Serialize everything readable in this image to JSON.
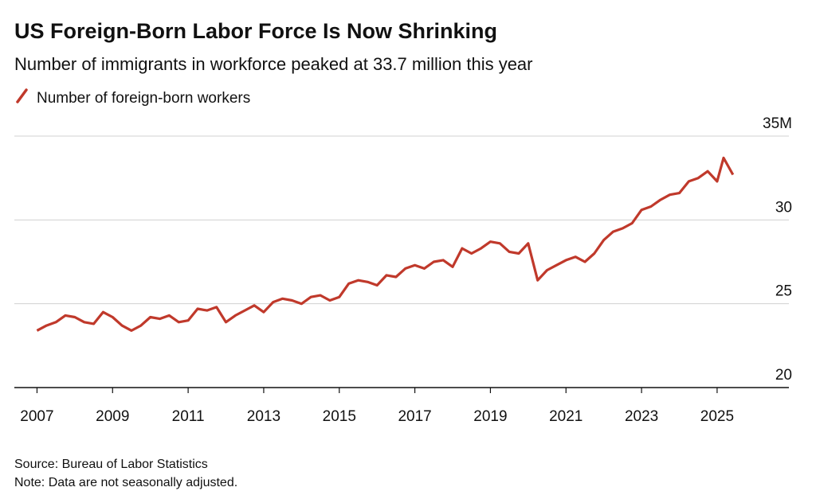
{
  "chart_data": {
    "type": "line",
    "title": "US Foreign-Born Labor Force Is Now Shrinking",
    "subtitle": "Number of immigrants in workforce peaked at 33.7 million this year",
    "source": "Source: Bureau of Labor Statistics",
    "note": "Note: Data are not seasonally adjusted.",
    "x": [
      2007,
      2007.25,
      2007.5,
      2007.75,
      2008,
      2008.25,
      2008.5,
      2008.75,
      2009,
      2009.25,
      2009.5,
      2009.75,
      2010,
      2010.25,
      2010.5,
      2010.75,
      2011,
      2011.25,
      2011.5,
      2011.75,
      2012,
      2012.25,
      2012.5,
      2012.75,
      2013,
      2013.25,
      2013.5,
      2013.75,
      2014,
      2014.25,
      2014.5,
      2014.75,
      2015,
      2015.25,
      2015.5,
      2015.75,
      2016,
      2016.25,
      2016.5,
      2016.75,
      2017,
      2017.25,
      2017.5,
      2017.75,
      2018,
      2018.25,
      2018.5,
      2018.75,
      2019,
      2019.25,
      2019.5,
      2019.75,
      2020,
      2020.25,
      2020.5,
      2020.75,
      2021,
      2021.25,
      2021.5,
      2021.75,
      2022,
      2022.25,
      2022.5,
      2022.75,
      2023,
      2023.25,
      2023.5,
      2023.75,
      2024,
      2024.25,
      2024.5,
      2024.75,
      2025,
      2025.17,
      2025.42
    ],
    "series": [
      {
        "name": "Number of foreign-born workers",
        "color": "#c0392b",
        "values": [
          23.4,
          23.7,
          23.9,
          24.3,
          24.2,
          23.9,
          23.8,
          24.5,
          24.2,
          23.7,
          23.4,
          23.7,
          24.2,
          24.1,
          24.3,
          23.9,
          24.0,
          24.7,
          24.6,
          24.8,
          23.9,
          24.3,
          24.6,
          24.9,
          24.5,
          25.1,
          25.3,
          25.2,
          25.0,
          25.4,
          25.5,
          25.2,
          25.4,
          26.2,
          26.4,
          26.3,
          26.1,
          26.7,
          26.6,
          27.1,
          27.3,
          27.1,
          27.5,
          27.6,
          27.2,
          28.3,
          28.0,
          28.3,
          28.7,
          28.6,
          28.1,
          28.0,
          28.6,
          26.4,
          27.0,
          27.3,
          27.6,
          27.8,
          27.5,
          28.0,
          28.8,
          29.3,
          29.5,
          29.8,
          30.6,
          30.8,
          31.2,
          31.5,
          31.6,
          32.3,
          32.5,
          32.9,
          32.3,
          33.7,
          32.7
        ]
      }
    ],
    "xlim": [
      2006.4,
      2026.9
    ],
    "xticks": [
      2007,
      2009,
      2011,
      2013,
      2015,
      2017,
      2019,
      2021,
      2023,
      2025
    ],
    "ylim": [
      20,
      35
    ],
    "yticks": [
      20,
      25,
      30,
      {
        "value": 35,
        "label": "35M"
      }
    ],
    "grid": true
  }
}
